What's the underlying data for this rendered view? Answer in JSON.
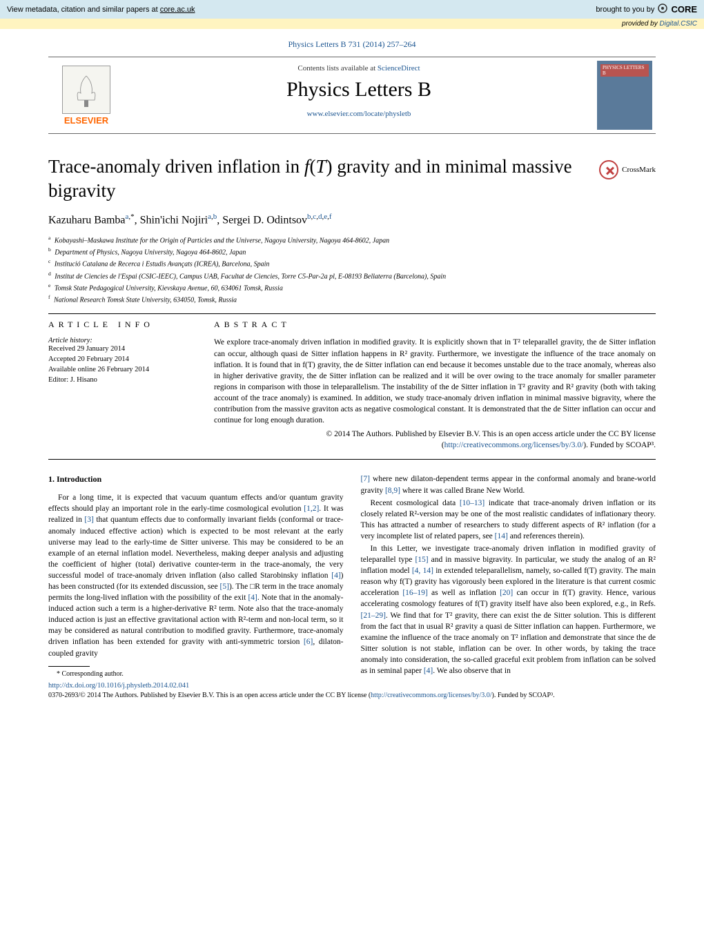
{
  "banner": {
    "left_prefix": "View metadata, citation and similar papers at ",
    "left_link": "core.ac.uk",
    "right_prefix": "brought to you by ",
    "brand": "CORE"
  },
  "provided": {
    "prefix": "provided by ",
    "source": "Digital.CSIC"
  },
  "citation": "Physics Letters B 731 (2014) 257–264",
  "header": {
    "elsevier": "ELSEVIER",
    "contents_prefix": "Contents lists available at ",
    "contents_link": "ScienceDirect",
    "journal_name": "Physics Letters B",
    "journal_url": "www.elsevier.com/locate/physletb",
    "cover_label": "PHYSICS LETTERS B"
  },
  "title": "Trace-anomaly driven inflation in f(T) gravity and in minimal massive bigravity",
  "crossmark": "CrossMark",
  "authors_html": "Kazuharu Bamba<sup><a>a</a>,*</sup>, Shin'ichi Nojiri<sup><a>a</a>,<a>b</a></sup>, Sergei D. Odintsov<sup><a>b</a>,<a>c</a>,<a>d</a>,<a>e</a>,<a>f</a></sup>",
  "affiliations": [
    {
      "sup": "a",
      "text": "Kobayashi–Maskawa Institute for the Origin of Particles and the Universe, Nagoya University, Nagoya 464-8602, Japan"
    },
    {
      "sup": "b",
      "text": "Department of Physics, Nagoya University, Nagoya 464-8602, Japan"
    },
    {
      "sup": "c",
      "text": "Institució Catalana de Recerca i Estudis Avançats (ICREA), Barcelona, Spain"
    },
    {
      "sup": "d",
      "text": "Institut de Ciencies de l'Espai (CSIC-IEEC), Campus UAB, Facultat de Ciencies, Torre C5-Par-2a pl, E-08193 Bellaterra (Barcelona), Spain"
    },
    {
      "sup": "e",
      "text": "Tomsk State Pedagogical University, Kievskaya Avenue, 60, 634061 Tomsk, Russia"
    },
    {
      "sup": "f",
      "text": "National Research Tomsk State University, 634050, Tomsk, Russia"
    }
  ],
  "info": {
    "header": "ARTICLE INFO",
    "history_label": "Article history:",
    "items": [
      "Received 29 January 2014",
      "Accepted 20 February 2014",
      "Available online 26 February 2014",
      "Editor: J. Hisano"
    ]
  },
  "abstract": {
    "header": "ABSTRACT",
    "text": "We explore trace-anomaly driven inflation in modified gravity. It is explicitly shown that in T² teleparallel gravity, the de Sitter inflation can occur, although quasi de Sitter inflation happens in R² gravity. Furthermore, we investigate the influence of the trace anomaly on inflation. It is found that in f(T) gravity, the de Sitter inflation can end because it becomes unstable due to the trace anomaly, whereas also in higher derivative gravity, the de Sitter inflation can be realized and it will be over owing to the trace anomaly for smaller parameter regions in comparison with those in teleparallelism. The instability of the de Sitter inflation in T² gravity and R² gravity (both with taking account of the trace anomaly) is examined. In addition, we study trace-anomaly driven inflation in minimal massive bigravity, where the contribution from the massive graviton acts as negative cosmological constant. It is demonstrated that the de Sitter inflation can occur and continue for long enough duration.",
    "copyright_prefix": "© 2014 The Authors. Published by Elsevier B.V. This is an open access article under the CC BY license",
    "license_url": "http://creativecommons.org/licenses/by/3.0/",
    "funded": "). Funded by SCOAP³."
  },
  "intro_head": "1. Introduction",
  "col1_html": "For a long time, it is expected that vacuum quantum effects and/or quantum gravity effects should play an important role in the early-time cosmological evolution <a>[1,2]</a>. It was realized in <a>[3]</a> that quantum effects due to conformally invariant fields (conformal or trace-anomaly induced effective action) which is expected to be most relevant at the early universe may lead to the early-time de Sitter universe. This may be considered to be an example of an eternal inflation model. Nevertheless, making deeper analysis and adjusting the coefficient of higher (total) derivative counter-term in the trace-anomaly, the very successful model of trace-anomaly driven inflation (also called Starobinsky inflation <a>[4]</a>) has been constructed (for its extended discussion, see <a>[5]</a>). The □R term in the trace anomaly permits the long-lived inflation with the possibility of the exit <a>[4]</a>. Note that in the anomaly-induced action such a term is a higher-derivative R² term. Note also that the trace-anomaly induced action is just an effective gravitational action with R²-term and non-local term, so it may be considered as natural contribution to modified gravity. Furthermore, trace-anomaly driven inflation has been extended for gravity with anti-symmetric torsion <a>[6]</a>, dilaton-coupled gravity",
  "col2_p1_html": "<a>[7]</a> where new dilaton-dependent terms appear in the conformal anomaly and brane-world gravity <a>[8,9]</a> where it was called Brane New World.",
  "col2_p2_html": "Recent cosmological data <a>[10–13]</a> indicate that trace-anomaly driven inflation or its closely related R²-version may be one of the most realistic candidates of inflationary theory. This has attracted a number of researchers to study different aspects of R² inflation (for a very incomplete list of related papers, see <a>[14]</a> and references therein).",
  "col2_p3_html": "In this Letter, we investigate trace-anomaly driven inflation in modified gravity of teleparallel type <a>[15]</a> and in massive bigravity. In particular, we study the analog of an R² inflation model <a>[4, 14]</a> in extended teleparallelism, namely, so-called f(T) gravity. The main reason why f(T) gravity has vigorously been explored in the literature is that current cosmic acceleration <a>[16–19]</a> as well as inflation <a>[20]</a> can occur in f(T) gravity. Hence, various accelerating cosmology features of f(T) gravity itself have also been explored, e.g., in Refs. <a>[21–29]</a>. We find that for T² gravity, there can exist the de Sitter solution. This is different from the fact that in usual R² gravity a quasi de Sitter inflation can happen. Furthermore, we examine the influence of the trace anomaly on T² inflation and demonstrate that since the de Sitter solution is not stable, inflation can be over. In other words, by taking the trace anomaly into consideration, the so-called graceful exit problem from inflation can be solved as in seminal paper <a>[4]</a>. We also observe that in",
  "footnote": "* Corresponding author.",
  "doi": "http://dx.doi.org/10.1016/j.physletb.2014.02.041",
  "bottom_copyright_html": "0370-2693/© 2014 The Authors. Published by Elsevier B.V. This is an open access article under the CC BY license (<a>http://creativecommons.org/licenses/by/3.0/</a>). Funded by SCOAP³.",
  "colors": {
    "link": "#1a5490",
    "banner_bg": "#d4e8f0",
    "provided_bg": "#fff4c0",
    "elsevier_orange": "#ff6600"
  }
}
